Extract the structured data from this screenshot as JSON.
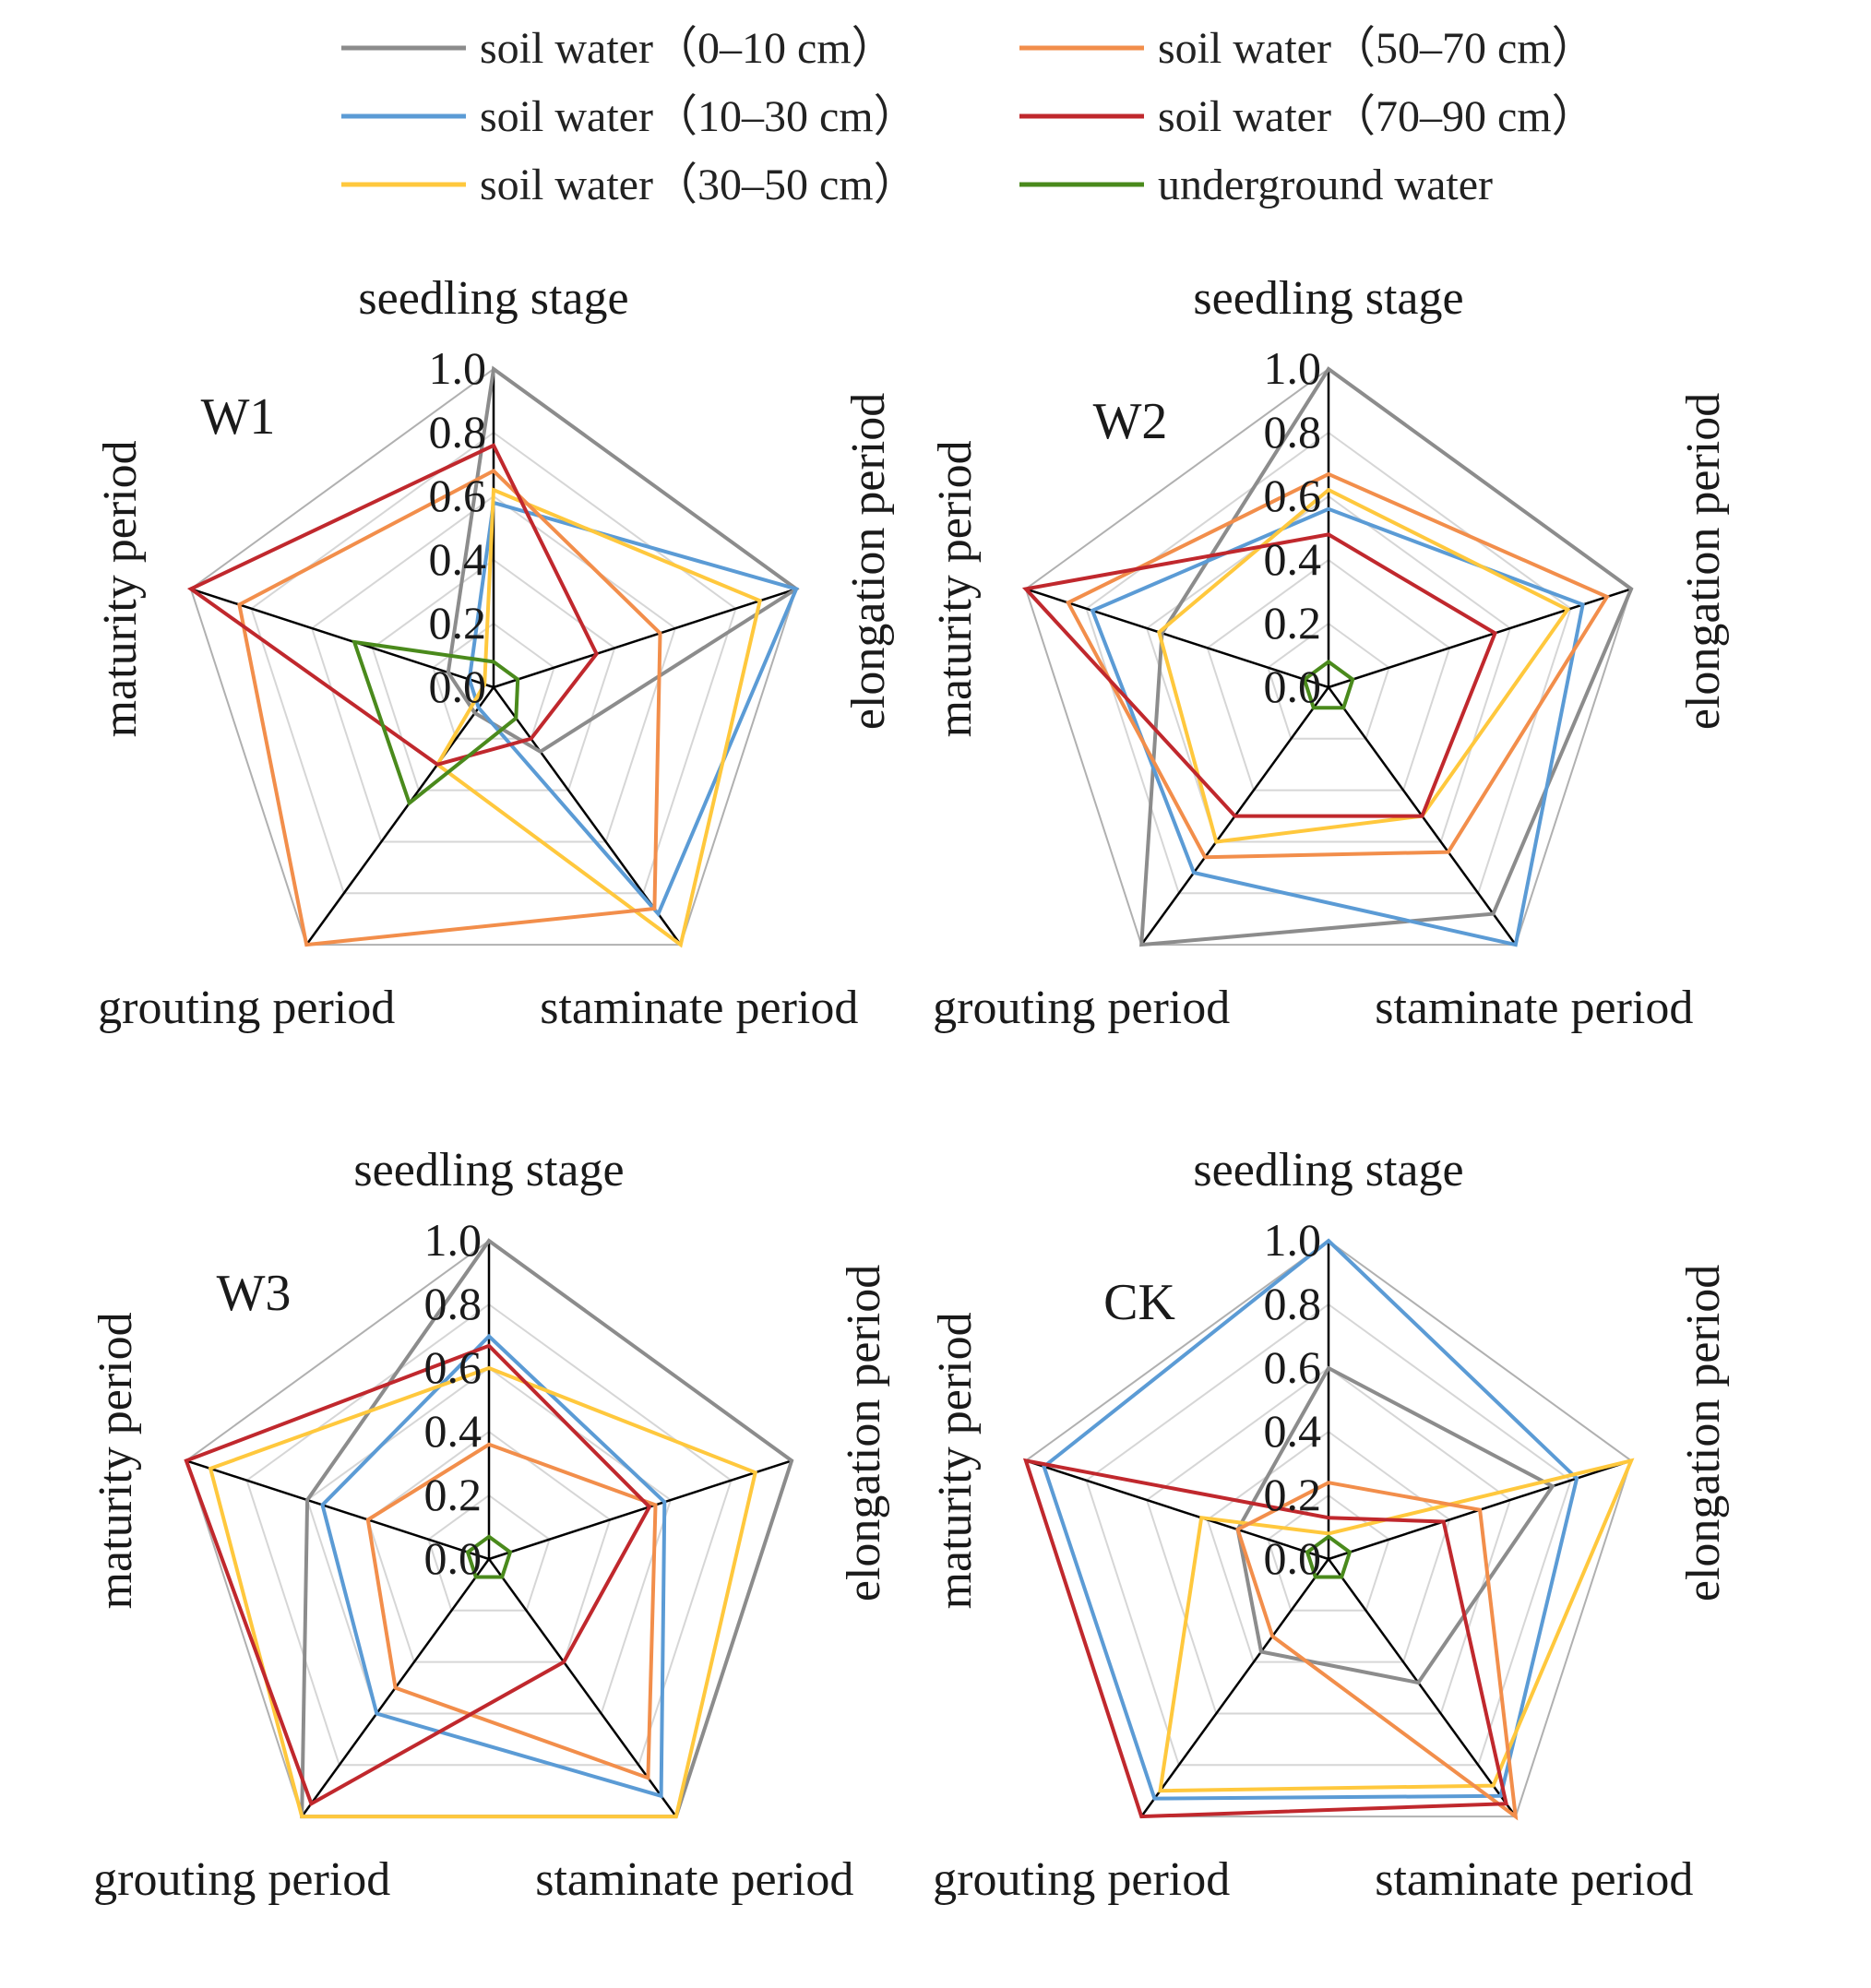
{
  "chart_data": {
    "type": "radar",
    "axes": [
      "seedling stage",
      "elongation period",
      "staminate period",
      "grouting period",
      "maturity period"
    ],
    "r_ticks": [
      "0.0",
      "0.2",
      "0.4",
      "0.6",
      "0.8",
      "1.0"
    ],
    "rlim": [
      0,
      1
    ],
    "legend": [
      {
        "name": "soil water（0–10 cm）",
        "color": "#8c8c8c"
      },
      {
        "name": "soil water（50–70 cm）",
        "color": "#f28e4b"
      },
      {
        "name": "soil water（10–30 cm）",
        "color": "#5b9bd5"
      },
      {
        "name": "soil water（70–90 cm）",
        "color": "#c0282d"
      },
      {
        "name": "soil water（30–50 cm）",
        "color": "#ffc83d"
      },
      {
        "name": "underground water",
        "color": "#4a8a1c"
      }
    ],
    "panels": [
      {
        "label": "W1",
        "series": [
          {
            "name": "soil water（0–10 cm）",
            "values": [
              1.0,
              1.0,
              0.25,
              0.1,
              0.15
            ]
          },
          {
            "name": "soil water（10–30 cm）",
            "values": [
              0.58,
              1.0,
              0.88,
              0.08,
              0.08
            ]
          },
          {
            "name": "soil water（30–50 cm）",
            "values": [
              0.62,
              0.88,
              1.0,
              0.3,
              0.03
            ]
          },
          {
            "name": "soil water（50–70 cm）",
            "values": [
              0.68,
              0.55,
              0.86,
              1.0,
              0.84
            ]
          },
          {
            "name": "soil water（70–90 cm）",
            "values": [
              0.76,
              0.34,
              0.2,
              0.3,
              1.0
            ]
          },
          {
            "name": "underground water",
            "values": [
              0.08,
              0.08,
              0.12,
              0.45,
              0.46
            ]
          }
        ]
      },
      {
        "label": "W2",
        "series": [
          {
            "name": "soil water（0–10 cm）",
            "values": [
              1.0,
              1.0,
              0.88,
              1.0,
              0.55
            ]
          },
          {
            "name": "soil water（10–30 cm）",
            "values": [
              0.56,
              0.84,
              1.0,
              0.72,
              0.78
            ]
          },
          {
            "name": "soil water（30–50 cm）",
            "values": [
              0.62,
              0.79,
              0.5,
              0.6,
              0.56
            ]
          },
          {
            "name": "soil water（50–70 cm）",
            "values": [
              0.67,
              0.92,
              0.64,
              0.66,
              0.86
            ]
          },
          {
            "name": "soil water（70–90 cm）",
            "values": [
              0.48,
              0.55,
              0.5,
              0.5,
              1.0
            ]
          },
          {
            "name": "underground water",
            "values": [
              0.08,
              0.08,
              0.08,
              0.08,
              0.08
            ]
          }
        ]
      },
      {
        "label": "W3",
        "series": [
          {
            "name": "soil water（0–10 cm）",
            "values": [
              1.0,
              1.0,
              1.0,
              1.0,
              0.6
            ]
          },
          {
            "name": "soil water（10–30 cm）",
            "values": [
              0.7,
              0.58,
              0.92,
              0.6,
              0.55
            ]
          },
          {
            "name": "soil water（30–50 cm）",
            "values": [
              0.6,
              0.88,
              1.0,
              1.0,
              0.92
            ]
          },
          {
            "name": "soil water（50–70 cm）",
            "values": [
              0.36,
              0.55,
              0.85,
              0.5,
              0.4
            ]
          },
          {
            "name": "soil water（70–90 cm）",
            "values": [
              0.67,
              0.53,
              0.4,
              0.95,
              1.0
            ]
          },
          {
            "name": "underground water",
            "values": [
              0.07,
              0.07,
              0.07,
              0.07,
              0.07
            ]
          }
        ]
      },
      {
        "label": "CK",
        "series": [
          {
            "name": "soil water（0–10 cm）",
            "values": [
              0.6,
              0.74,
              0.48,
              0.36,
              0.3
            ]
          },
          {
            "name": "soil water（10–30 cm）",
            "values": [
              1.0,
              0.82,
              0.92,
              0.93,
              0.94
            ]
          },
          {
            "name": "soil water（30–50 cm）",
            "values": [
              0.08,
              1.0,
              0.88,
              0.9,
              0.42
            ]
          },
          {
            "name": "soil water（50–70 cm）",
            "values": [
              0.24,
              0.5,
              1.0,
              0.3,
              0.3
            ]
          },
          {
            "name": "soil water（70–90 cm）",
            "values": [
              0.13,
              0.38,
              0.95,
              1.0,
              1.0
            ]
          },
          {
            "name": "underground water",
            "values": [
              0.07,
              0.07,
              0.07,
              0.07,
              0.07
            ]
          }
        ]
      }
    ]
  }
}
